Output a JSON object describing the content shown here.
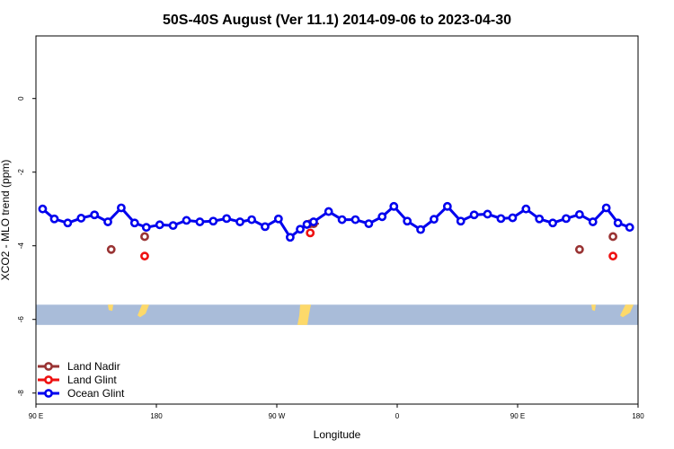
{
  "chart_data": {
    "type": "line",
    "title": "50S-40S August (Ver 11.1)   2014-09-06 to 2023-04-30",
    "xlabel": "Longitude",
    "ylabel": "XCO2 - MLO trend (ppm)",
    "xlim": [
      90,
      450
    ],
    "ylim": [
      -8.3,
      1.7
    ],
    "x_ticks": [
      {
        "value": 90,
        "label": "90 E"
      },
      {
        "value": 162,
        "label": "180"
      },
      {
        "value": 234,
        "label": "90 W"
      },
      {
        "value": 306,
        "label": "0"
      },
      {
        "value": 378,
        "label": "90 E"
      },
      {
        "value": 450,
        "label": "180"
      }
    ],
    "y_ticks": [
      {
        "value": 0,
        "label": "0"
      },
      {
        "value": -2,
        "label": "-2"
      },
      {
        "value": -4,
        "label": "-4"
      },
      {
        "value": -6,
        "label": "-6"
      },
      {
        "value": -8,
        "label": "-8"
      }
    ],
    "grid": false,
    "legend_position": "bottom-left",
    "background_strip": {
      "y_min": -6.15,
      "y_max": -5.6,
      "ocean_color": "#a9bcd9",
      "land_color": "#fdd96a"
    },
    "series": [
      {
        "name": "Land Nadir",
        "color": "#993333",
        "x": [
          135,
          155,
          254,
          256,
          415,
          435
        ],
        "values": [
          -4.1,
          -3.75,
          -3.4,
          -3.4,
          -4.1,
          -3.75
        ]
      },
      {
        "name": "Land Glint",
        "color": "#ee1111",
        "x": [
          155,
          254,
          435
        ],
        "values": [
          -4.28,
          -3.65,
          -4.28
        ]
      },
      {
        "name": "Ocean Glint",
        "color": "#0000ee",
        "x": [
          94,
          101,
          109,
          117,
          125,
          133,
          141,
          149,
          156,
          164,
          172,
          180,
          188,
          196,
          204,
          212,
          219,
          227,
          235,
          242,
          248,
          252,
          256,
          265,
          273,
          281,
          289,
          297,
          304,
          312,
          320,
          328,
          336,
          344,
          352,
          360,
          368,
          375,
          383,
          391,
          399,
          407,
          415,
          423,
          431,
          438,
          445
        ],
        "values": [
          -3.0,
          -3.27,
          -3.38,
          -3.25,
          -3.16,
          -3.35,
          -2.97,
          -3.38,
          -3.5,
          -3.43,
          -3.45,
          -3.31,
          -3.35,
          -3.33,
          -3.26,
          -3.35,
          -3.29,
          -3.48,
          -3.27,
          -3.77,
          -3.55,
          -3.42,
          -3.35,
          -3.07,
          -3.29,
          -3.29,
          -3.4,
          -3.21,
          -2.93,
          -3.33,
          -3.56,
          -3.28,
          -2.93,
          -3.33,
          -3.16,
          -3.14,
          -3.26,
          -3.24,
          -3.0,
          -3.27,
          -3.38,
          -3.26,
          -3.15,
          -3.35,
          -2.97,
          -3.38,
          -3.5
        ]
      }
    ]
  }
}
